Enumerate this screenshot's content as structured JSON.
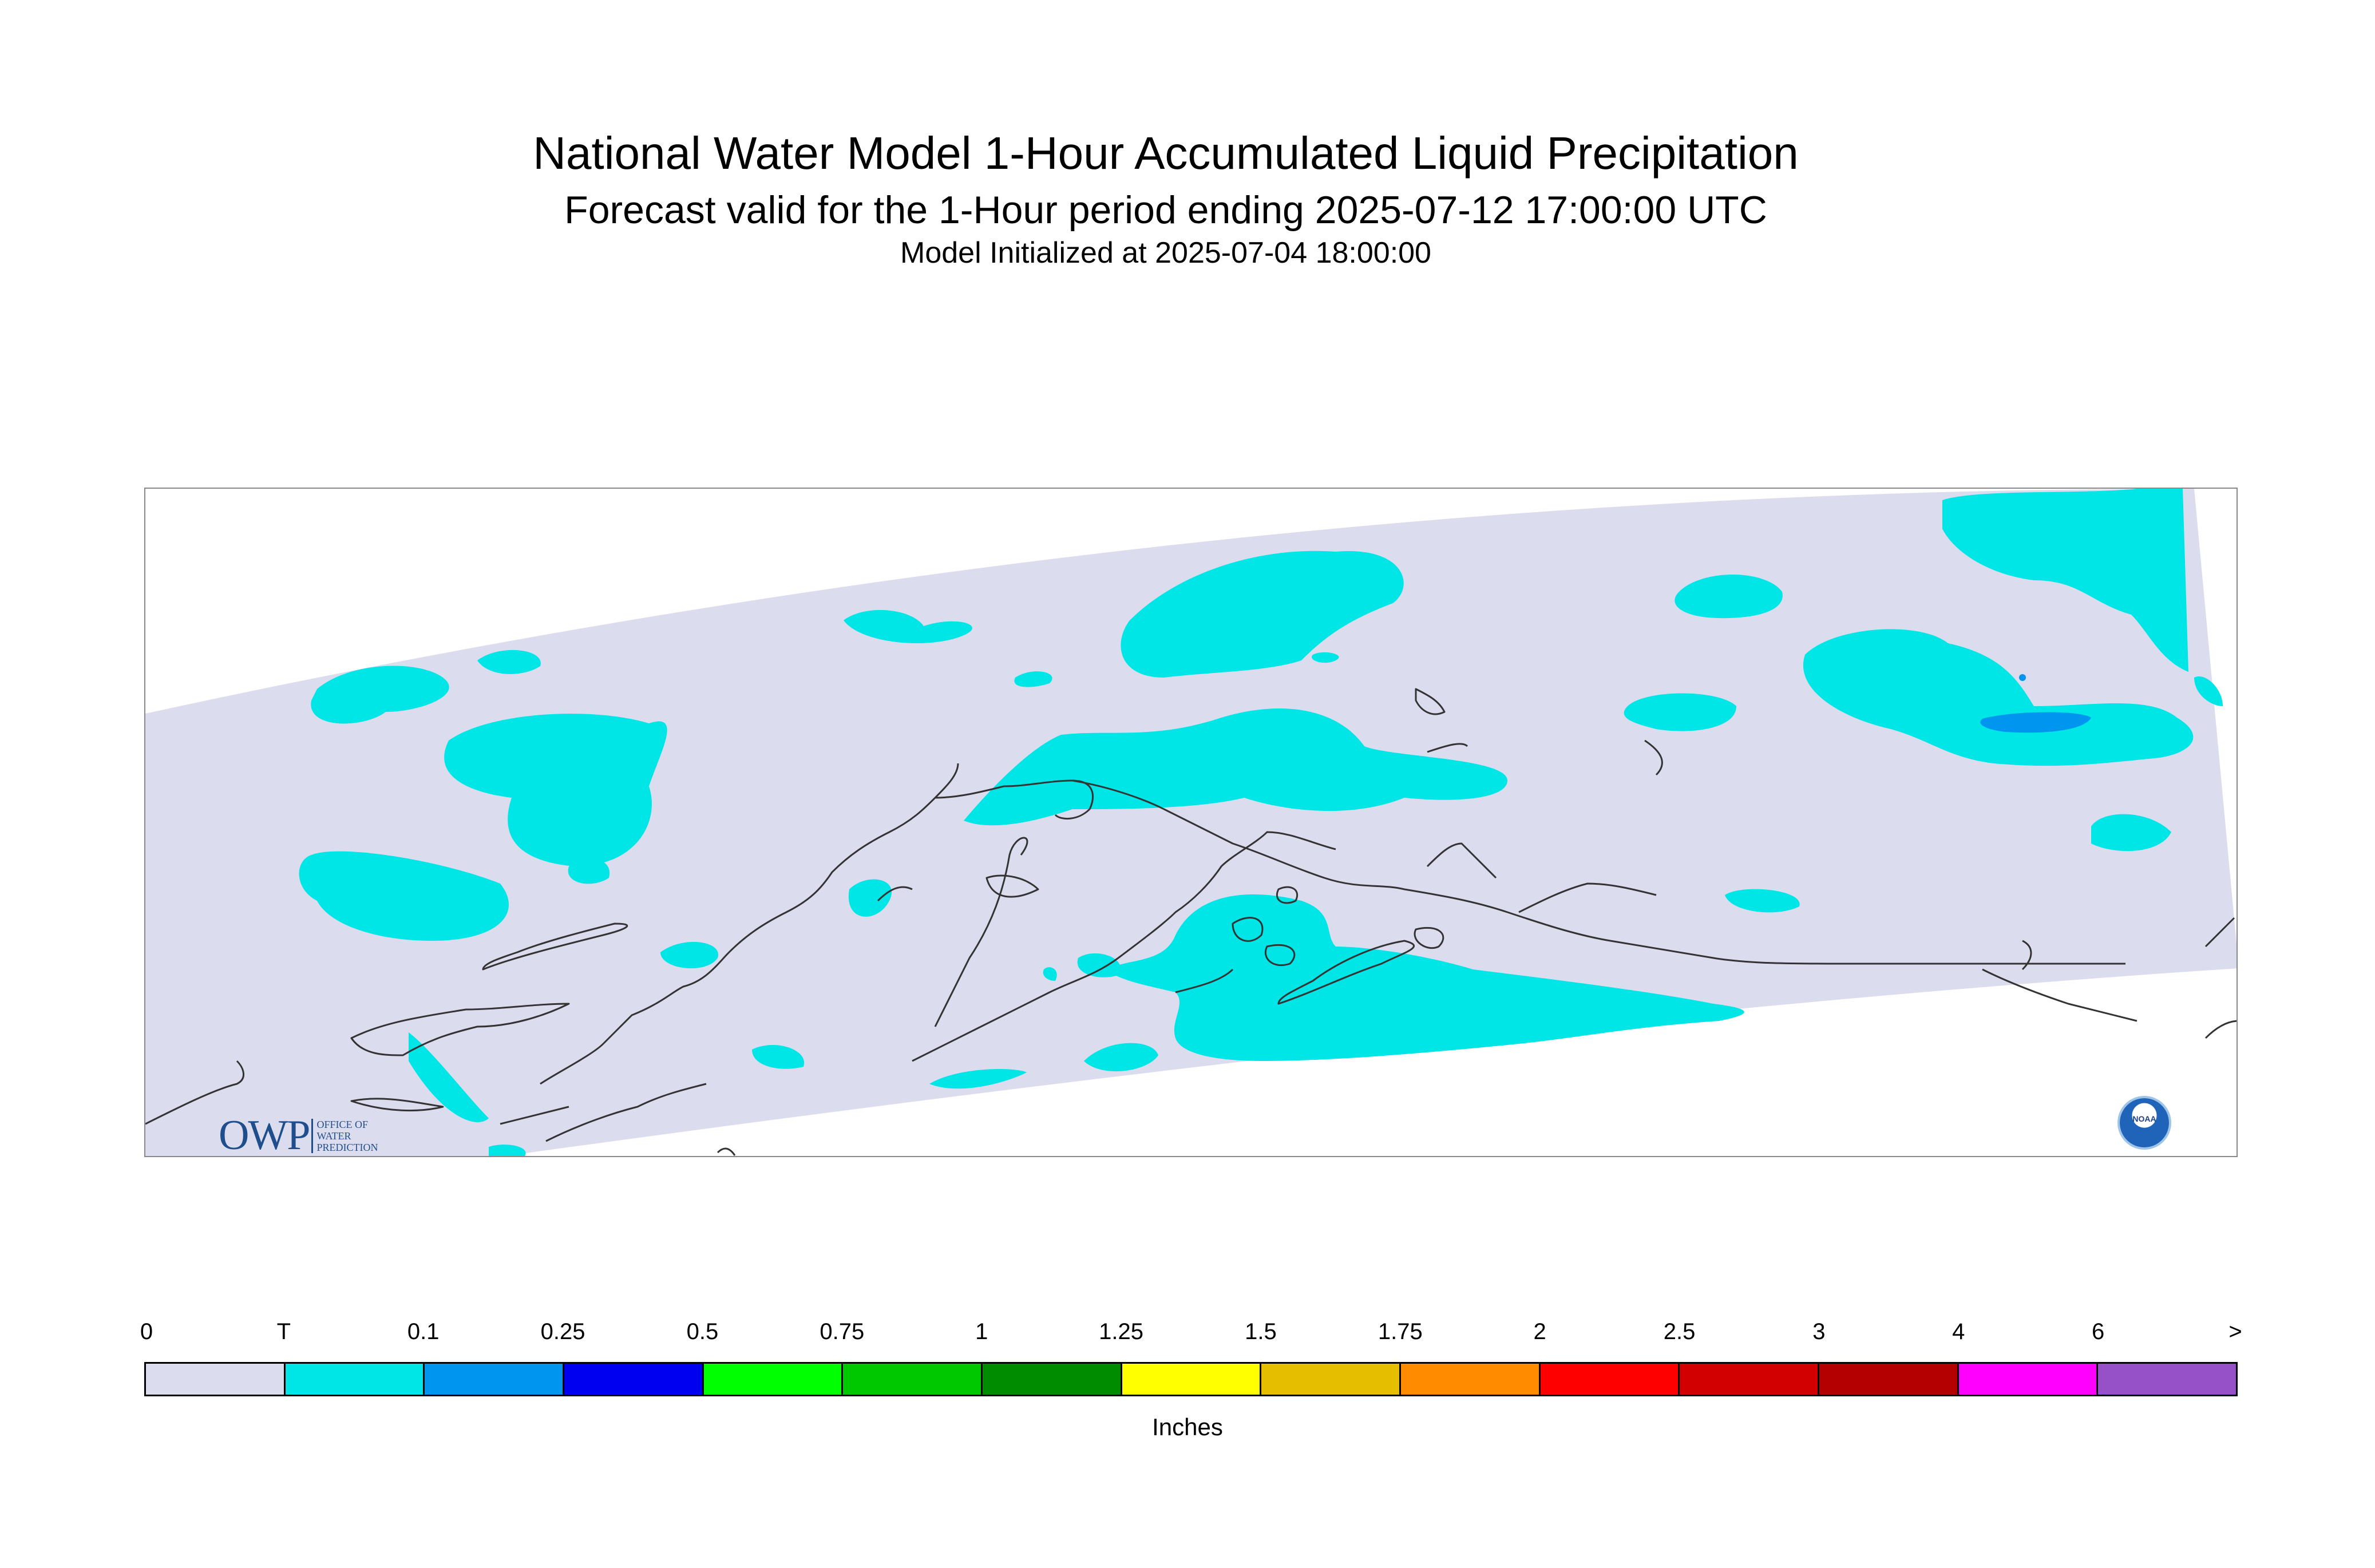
{
  "header": {
    "title": "National Water Model 1-Hour Accumulated Liquid Precipitation",
    "subtitle": "Forecast valid for the 1-Hour period ending 2025-07-12 17:00:00 UTC",
    "init_line": "Model Initialized at 2025-07-04 18:00:00"
  },
  "map": {
    "domain_color": "#dcdcef",
    "coastline_color": "#333333",
    "precip_trace_color": "#00e5e5",
    "precip_light_color": "#0096f0"
  },
  "logos": {
    "owp_big": "OWP",
    "owp_small_lines": [
      "OFFICE OF",
      "WATER",
      "PREDICTION"
    ],
    "noaa_text": "NOAA"
  },
  "legend": {
    "tick_labels": [
      "0",
      "T",
      "0.1",
      "0.25",
      "0.5",
      "0.75",
      "1",
      "1.25",
      "1.5",
      "1.75",
      "2",
      "2.5",
      "3",
      "4",
      "6",
      ">"
    ],
    "colors": [
      "#dcdcef",
      "#00e5e5",
      "#0096f0",
      "#0000f0",
      "#00ff00",
      "#00c800",
      "#008c00",
      "#ffff00",
      "#e6be00",
      "#ff8c00",
      "#ff0000",
      "#d20000",
      "#b40000",
      "#ff00ff",
      "#9650c8"
    ],
    "units": "Inches"
  }
}
